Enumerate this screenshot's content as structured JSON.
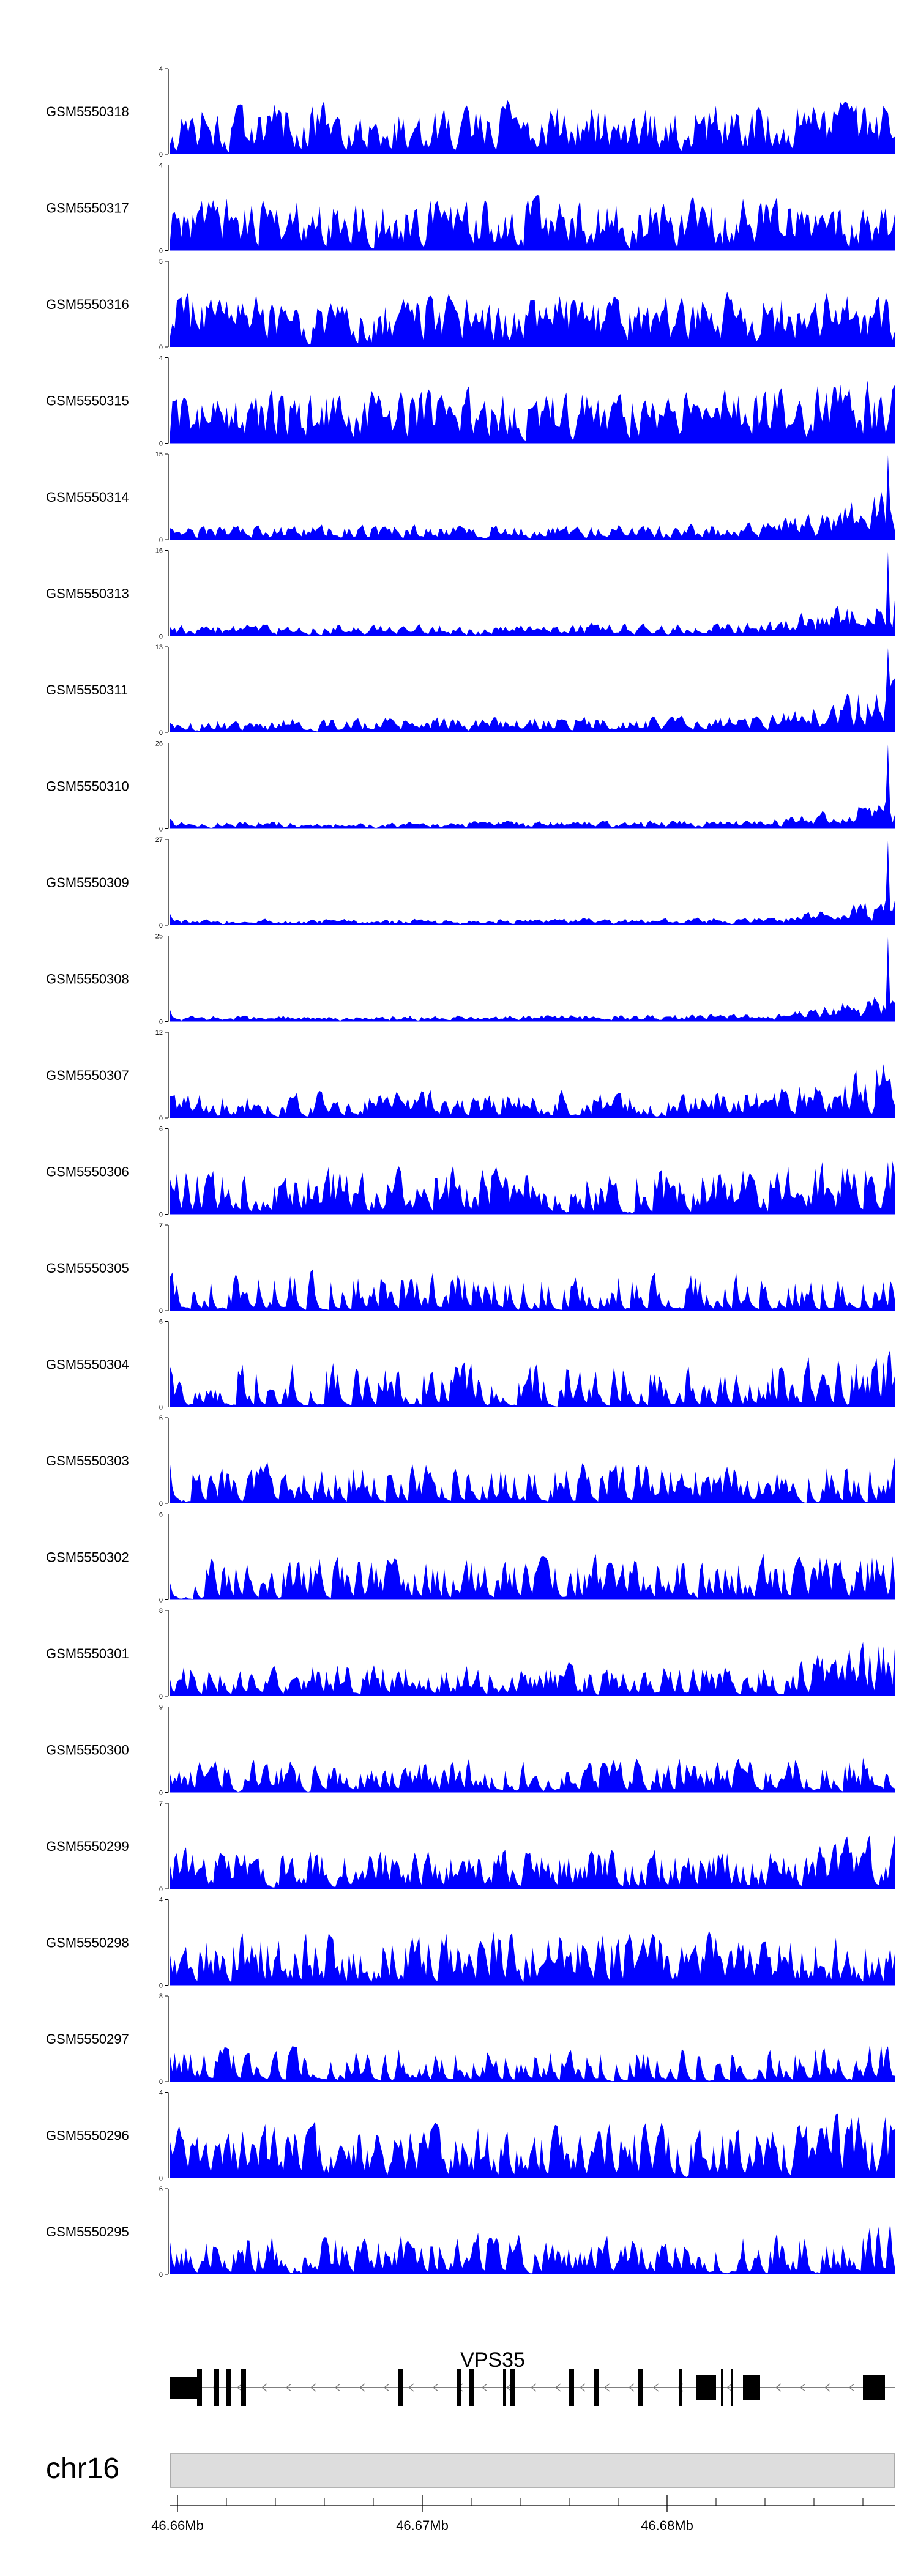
{
  "chart_data": {
    "type": "area",
    "chromosome": "chr16",
    "gene": {
      "name": "VPS35",
      "strand": "-"
    },
    "xlim": [
      46.6597,
      46.6893
    ],
    "x_ticks": [
      {
        "value": 46.66,
        "label": "46.66Mb"
      },
      {
        "value": 46.67,
        "label": "46.67Mb"
      },
      {
        "value": 46.68,
        "label": "46.68Mb"
      }
    ],
    "colors": {
      "signal": "#0000ff",
      "axis": "#000000",
      "ideogram": "#dddddd"
    },
    "tracks": [
      {
        "name": "GSM5550318",
        "ymax": "4",
        "ymax_value": 4,
        "seed": 318,
        "trend": 0.0,
        "sparsity": 0.25,
        "level": 0.45
      },
      {
        "name": "GSM5550317",
        "ymax": "4",
        "ymax_value": 4,
        "seed": 317,
        "trend": 0.0,
        "sparsity": 0.25,
        "level": 0.45
      },
      {
        "name": "GSM5550316",
        "ymax": "5",
        "ymax_value": 5,
        "seed": 316,
        "trend": 0.0,
        "sparsity": 0.2,
        "level": 0.45
      },
      {
        "name": "GSM5550315",
        "ymax": "4",
        "ymax_value": 4,
        "seed": 315,
        "trend": 0.3,
        "sparsity": 0.2,
        "level": 0.45
      },
      {
        "name": "GSM5550314",
        "ymax": "15",
        "ymax_value": 15,
        "seed": 314,
        "trend": 3.0,
        "sparsity": 0.3,
        "level": 0.12
      },
      {
        "name": "GSM5550313",
        "ymax": "16",
        "ymax_value": 16,
        "seed": 313,
        "trend": 3.5,
        "sparsity": 0.35,
        "level": 0.1
      },
      {
        "name": "GSM5550311",
        "ymax": "13",
        "ymax_value": 13,
        "seed": 311,
        "trend": 3.0,
        "sparsity": 0.35,
        "level": 0.12
      },
      {
        "name": "GSM5550310",
        "ymax": "26",
        "ymax_value": 26,
        "seed": 310,
        "trend": 4.0,
        "sparsity": 0.3,
        "level": 0.06
      },
      {
        "name": "GSM5550309",
        "ymax": "27",
        "ymax_value": 27,
        "seed": 309,
        "trend": 4.0,
        "sparsity": 0.3,
        "level": 0.05
      },
      {
        "name": "GSM5550308",
        "ymax": "25",
        "ymax_value": 25,
        "seed": 308,
        "trend": 4.5,
        "sparsity": 0.35,
        "level": 0.05
      },
      {
        "name": "GSM5550307",
        "ymax": "12",
        "ymax_value": 12,
        "seed": 307,
        "trend": 1.5,
        "sparsity": 0.4,
        "level": 0.22
      },
      {
        "name": "GSM5550306",
        "ymax": "6",
        "ymax_value": 6,
        "seed": 306,
        "trend": 0.3,
        "sparsity": 0.35,
        "level": 0.4
      },
      {
        "name": "GSM5550305",
        "ymax": "7",
        "ymax_value": 7,
        "seed": 305,
        "trend": 0.2,
        "sparsity": 0.55,
        "level": 0.35
      },
      {
        "name": "GSM5550304",
        "ymax": "6",
        "ymax_value": 6,
        "seed": 304,
        "trend": 0.3,
        "sparsity": 0.55,
        "level": 0.4
      },
      {
        "name": "GSM5550303",
        "ymax": "6",
        "ymax_value": 6,
        "seed": 303,
        "trend": 0.2,
        "sparsity": 0.45,
        "level": 0.35
      },
      {
        "name": "GSM5550302",
        "ymax": "6",
        "ymax_value": 6,
        "seed": 302,
        "trend": 0.2,
        "sparsity": 0.45,
        "level": 0.38
      },
      {
        "name": "GSM5550301",
        "ymax": "8",
        "ymax_value": 8,
        "seed": 301,
        "trend": 0.8,
        "sparsity": 0.45,
        "level": 0.28
      },
      {
        "name": "GSM5550300",
        "ymax": "9",
        "ymax_value": 9,
        "seed": 300,
        "trend": 0.8,
        "sparsity": 0.45,
        "level": 0.28
      },
      {
        "name": "GSM5550299",
        "ymax": "7",
        "ymax_value": 7,
        "seed": 299,
        "trend": 0.3,
        "sparsity": 0.4,
        "level": 0.35
      },
      {
        "name": "GSM5550298",
        "ymax": "4",
        "ymax_value": 4,
        "seed": 298,
        "trend": 0.1,
        "sparsity": 0.3,
        "level": 0.45
      },
      {
        "name": "GSM5550297",
        "ymax": "8",
        "ymax_value": 8,
        "seed": 297,
        "trend": 0.3,
        "sparsity": 0.55,
        "level": 0.3
      },
      {
        "name": "GSM5550296",
        "ymax": "4",
        "ymax_value": 4,
        "seed": 296,
        "trend": 0.3,
        "sparsity": 0.3,
        "level": 0.45
      },
      {
        "name": "GSM5550295",
        "ymax": "6",
        "ymax_value": 6,
        "seed": 295,
        "trend": 0.3,
        "sparsity": 0.45,
        "level": 0.35
      }
    ],
    "exons_mb": [
      [
        46.6597,
        46.6608
      ],
      [
        46.6608,
        46.661
      ],
      [
        46.6615,
        46.6617
      ],
      [
        46.662,
        46.6622
      ],
      [
        46.6626,
        46.6628
      ],
      [
        46.669,
        46.6692
      ],
      [
        46.6714,
        46.6716
      ],
      [
        46.6719,
        46.6721
      ],
      [
        46.6733,
        46.6734
      ],
      [
        46.6736,
        46.6738
      ],
      [
        46.676,
        46.6762
      ],
      [
        46.677,
        46.6772
      ],
      [
        46.6788,
        46.679
      ],
      [
        46.6805,
        46.6806
      ],
      [
        46.6812,
        46.682
      ],
      [
        46.6822,
        46.6823
      ],
      [
        46.6826,
        46.6827
      ],
      [
        46.6831,
        46.6838
      ],
      [
        46.688,
        46.6889
      ]
    ],
    "tallness": [
      0.6,
      1,
      1,
      1,
      1,
      1,
      1,
      1,
      1,
      1,
      1,
      1,
      1,
      1,
      0.7,
      1,
      1,
      0.7,
      0.7
    ]
  }
}
